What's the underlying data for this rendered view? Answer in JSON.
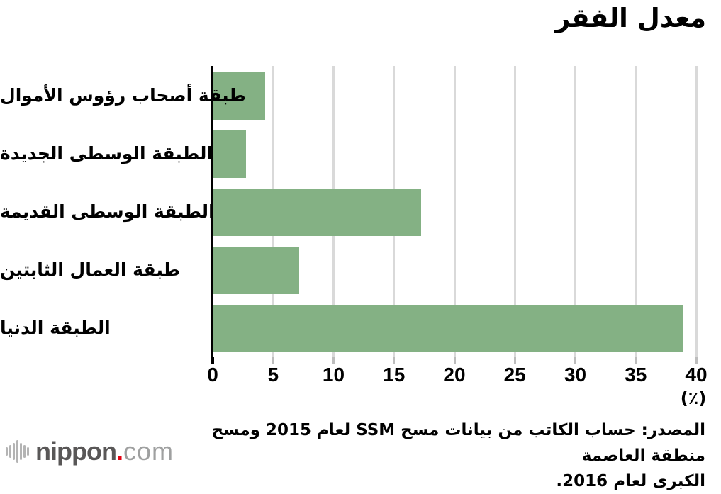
{
  "title": "معدل الفقر",
  "chart_data": {
    "type": "bar",
    "orientation": "horizontal",
    "title": "معدل الفقر",
    "categories": [
      "طبقة أصحاب رؤوس الأموال",
      "الطبقة الوسطى الجديدة",
      "الطبقة الوسطى القديمة",
      "طبقة العمال الثابتين",
      "الطبقة الدنيا"
    ],
    "values": [
      4.3,
      2.7,
      17.2,
      7.1,
      38.8
    ],
    "xlabel": "(٪)",
    "xlim": [
      0,
      40
    ],
    "xticks": [
      0,
      5,
      10,
      15,
      20,
      25,
      30,
      35,
      40
    ],
    "grid": true,
    "legend": false,
    "bar_color": "#84b184"
  },
  "source": {
    "line1": "المصدر: حساب الكاتب من بيانات مسح SSM لعام 2015 ومسح منطقة العاصمة",
    "line2": "الكبرى لعام 2016."
  },
  "logo": {
    "name": "nippon",
    "dot": ".",
    "tld": "com",
    "name_color": "#595757",
    "dot_color": "#e60012",
    "tld_color": "#9fa0a0",
    "wave_heights": [
      12,
      18,
      24,
      32,
      24,
      18,
      12
    ]
  },
  "colors": {
    "bar": "#84b184",
    "gridline": "#d9d9d9",
    "axis": "#000000",
    "background": "#ffffff"
  }
}
